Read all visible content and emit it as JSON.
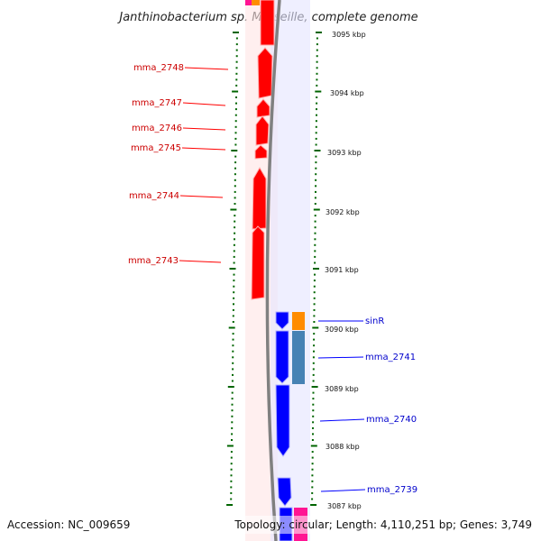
{
  "title": "Janthinobacterium sp. Marseille, complete genome",
  "accession": "Accession: NC_009659",
  "topology": "Topology: circular; Length: 4,110,251 bp; Genes: 3,749",
  "ruler_labels": [
    "3095 kbp",
    "3094 kbp",
    "3093 kbp",
    "3092 kbp",
    "3091 kbp",
    "3090 kbp",
    "3089 kbp",
    "3088 kbp",
    "3087 kbp"
  ],
  "reverse_genes": [
    "mma_2748",
    "mma_2747",
    "mma_2746",
    "mma_2745",
    "mma_2744",
    "mma_2743"
  ],
  "forward_genes": [
    "sinR",
    "mma_2741",
    "mma_2740",
    "mma_2739"
  ],
  "colors": {
    "reverse_strand": "#ff0000",
    "forward_strand": "#0000ff",
    "orange_feature": "#ff8c00",
    "steel_feature": "#4682b4",
    "pink_feature": "#ff1493",
    "tick": "#006400",
    "backbone": "#808080"
  }
}
